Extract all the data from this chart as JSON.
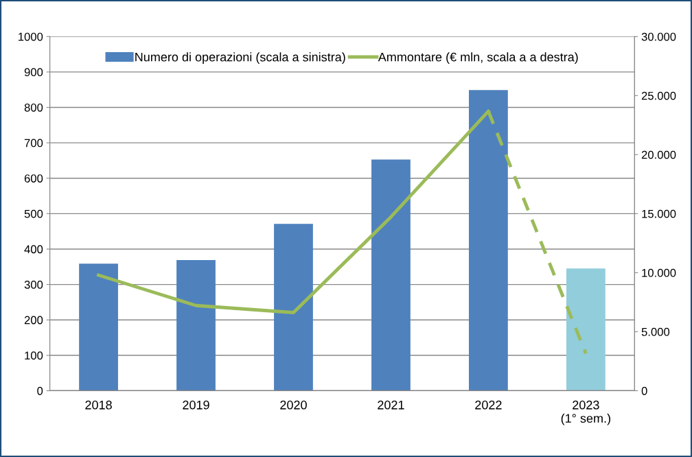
{
  "chart_data": {
    "type": "bar",
    "categories": [
      "2018",
      "2019",
      "2020",
      "2021",
      "2022",
      "2023\n(1° sem.)"
    ],
    "series": [
      {
        "name": "Numero di operazioni (scala a sinistra)",
        "color": "#4f81bd",
        "colors": [
          "#4f81bd",
          "#4f81bd",
          "#4f81bd",
          "#4f81bd",
          "#4f81bd",
          "#92cddc"
        ],
        "values": [
          359,
          369,
          471,
          653,
          849,
          345
        ]
      },
      {
        "name": "Ammontare (€ mln, scala a a destra)",
        "type": "line",
        "axis": "y2",
        "color": "#9bbb59",
        "line_style": "solid",
        "values": [
          9790,
          7220,
          6620,
          14720,
          23670,
          null
        ]
      },
      {
        "type": "line",
        "axis": "y2",
        "color": "#9bbb59",
        "line_style": "dashed",
        "values": [
          null,
          null,
          null,
          null,
          23670,
          3160
        ]
      }
    ],
    "ylim": [
      0,
      1000
    ],
    "yticks": [
      0,
      100,
      200,
      300,
      400,
      500,
      600,
      700,
      800,
      900,
      1000
    ],
    "y2lim": [
      0,
      30000
    ],
    "y2ticks": [
      0,
      {
        "value": 5000,
        "label": "5.000"
      },
      {
        "value": 10000,
        "label": "10.000"
      },
      {
        "value": 15000,
        "label": "15.000"
      },
      {
        "value": 20000,
        "label": "20.000"
      },
      {
        "value": 25000,
        "label": "25.000"
      },
      {
        "value": 30000,
        "label": "30.000"
      }
    ],
    "grid": "y",
    "legend": "top"
  }
}
